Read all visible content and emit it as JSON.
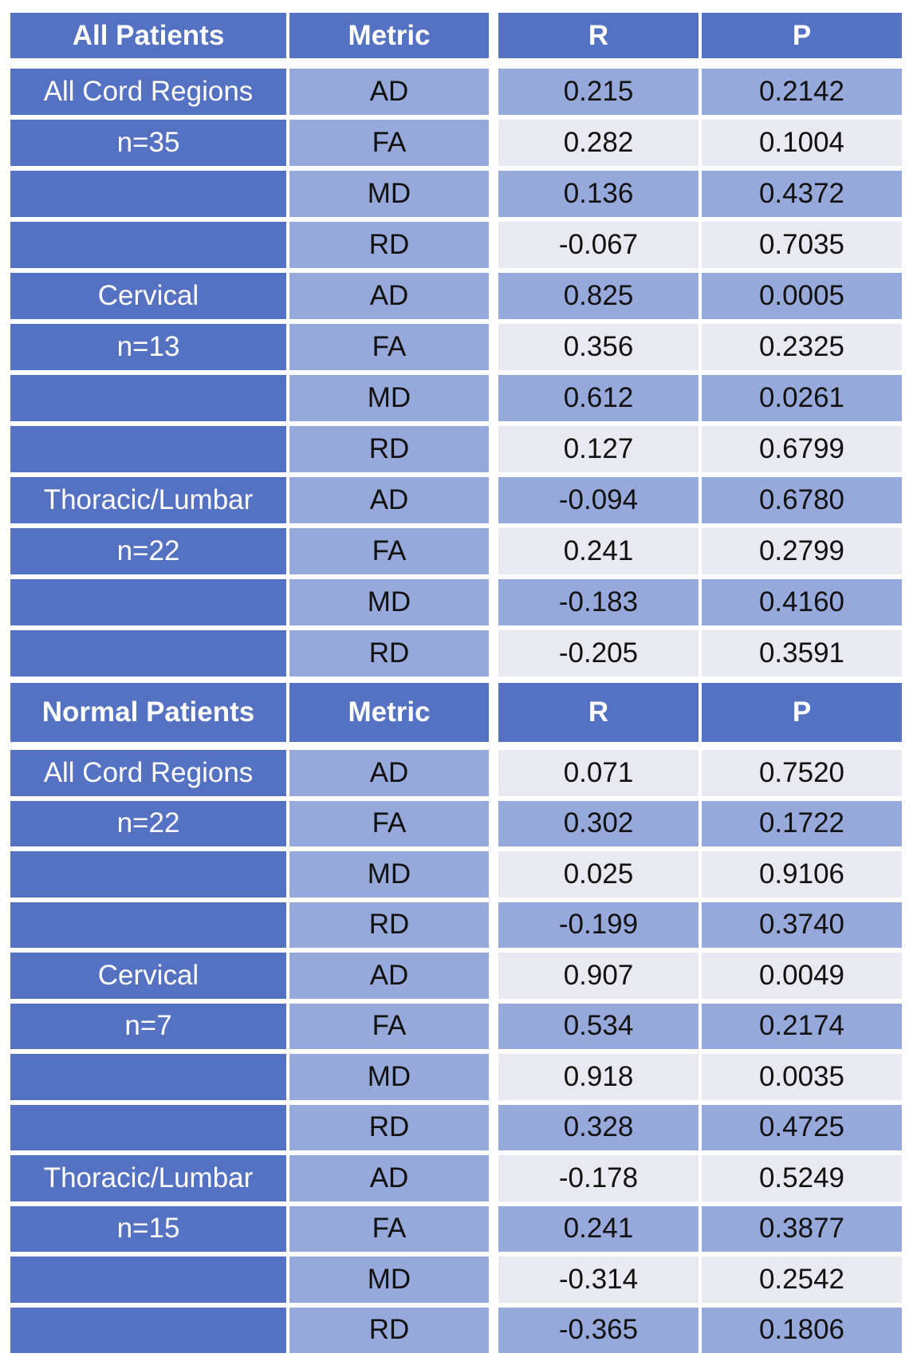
{
  "tables": [
    {
      "header": [
        "All Patients",
        "Metric",
        "R",
        "P"
      ],
      "rows": [
        [
          "All Cord Regions",
          "AD",
          "0.215",
          "0.2142"
        ],
        [
          "n=35",
          "FA",
          "0.282",
          "0.1004"
        ],
        [
          null,
          "MD",
          "0.136",
          "0.4372"
        ],
        [
          null,
          "RD",
          "-0.067",
          "0.7035"
        ],
        [
          "Cervical",
          "AD",
          "0.825",
          "0.0005"
        ],
        [
          "n=13",
          "FA",
          "0.356",
          "0.2325"
        ],
        [
          null,
          "MD",
          "0.612",
          "0.0261"
        ],
        [
          null,
          "RD",
          "0.127",
          "0.6799"
        ],
        [
          "Thoracic/Lumbar",
          "AD",
          "-0.094",
          "0.6780"
        ],
        [
          "n=22",
          "FA",
          "0.241",
          "0.2799"
        ],
        [
          null,
          "MD",
          "-0.183",
          "0.4160"
        ],
        [
          null,
          "RD",
          "-0.205",
          "0.3591"
        ]
      ]
    },
    {
      "header": [
        "Normal Patients",
        "Metric",
        "R",
        "P"
      ],
      "rows": [
        [
          "All Cord Regions",
          "AD",
          "0.071",
          "0.7520"
        ],
        [
          "n=22",
          "FA",
          "0.302",
          "0.1722"
        ],
        [
          null,
          "MD",
          "0.025",
          "0.9106"
        ],
        [
          null,
          "RD",
          "-0.199",
          "0.3740"
        ],
        [
          "Cervical",
          "AD",
          "0.907",
          "0.0049"
        ],
        [
          "n=7",
          "FA",
          "0.534",
          "0.2174"
        ],
        [
          null,
          "MD",
          "0.918",
          "0.0035"
        ],
        [
          null,
          "RD",
          "0.328",
          "0.4725"
        ],
        [
          "Thoracic/Lumbar",
          "AD",
          "-0.178",
          "0.5249"
        ],
        [
          "n=15",
          "FA",
          "0.241",
          "0.3877"
        ],
        [
          null,
          "MD",
          "-0.314",
          "0.2542"
        ],
        [
          null,
          "RD",
          "-0.365",
          "0.1806"
        ]
      ]
    }
  ]
}
